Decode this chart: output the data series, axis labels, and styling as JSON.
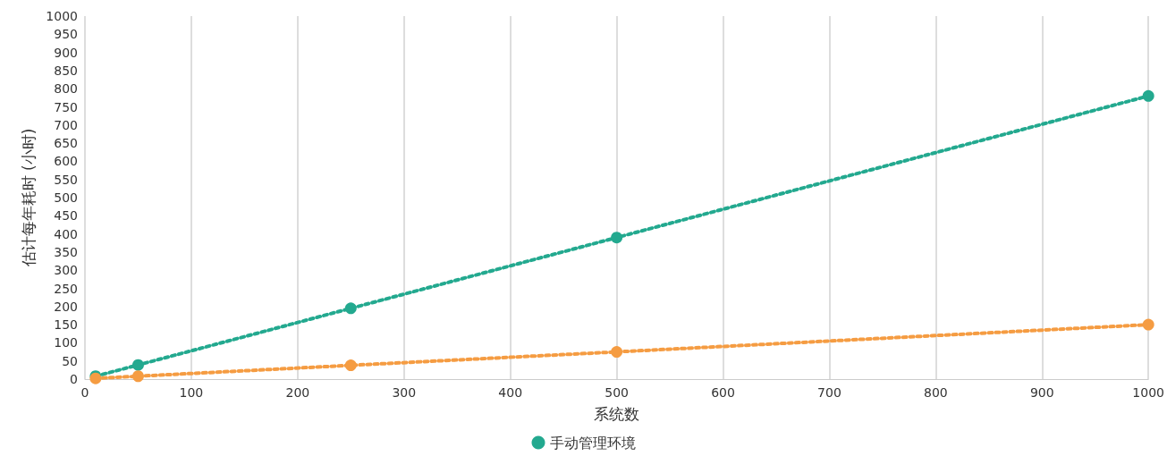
{
  "chart_data": {
    "type": "line",
    "xlabel": "系统数",
    "ylabel": "估计每年耗时 (小时)",
    "x": [
      10,
      50,
      250,
      500,
      1000
    ],
    "series": [
      {
        "color": "#f59c42",
        "values": [
          2,
          8,
          38,
          75,
          150
        ]
      },
      {
        "name": "手动管理环境",
        "color": "#23a98f",
        "values": [
          8,
          39,
          195,
          390,
          780
        ]
      }
    ],
    "xlim": [
      0,
      1000
    ],
    "xticks": [
      0,
      100,
      200,
      300,
      400,
      500,
      600,
      700,
      800,
      900,
      1000
    ],
    "ylim": [
      0,
      1000
    ],
    "yticks": [
      0,
      50,
      100,
      150,
      200,
      250,
      300,
      350,
      400,
      450,
      500,
      550,
      600,
      650,
      700,
      750,
      800,
      850,
      900,
      950,
      1000
    ],
    "grid": "x",
    "legend": "bottom",
    "marker": "circle",
    "line_style": "dotted"
  }
}
